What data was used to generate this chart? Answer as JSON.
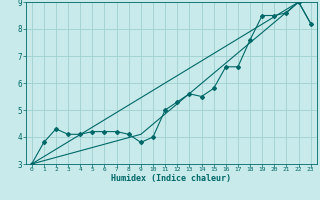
{
  "xlabel": "Humidex (Indice chaleur)",
  "bg_color": "#c8eaea",
  "grid_color": "#a0d0d0",
  "line_color": "#006868",
  "xlim": [
    -0.5,
    23.5
  ],
  "ylim": [
    3,
    9
  ],
  "xticks": [
    0,
    1,
    2,
    3,
    4,
    5,
    6,
    7,
    8,
    9,
    10,
    11,
    12,
    13,
    14,
    15,
    16,
    17,
    18,
    19,
    20,
    21,
    22,
    23
  ],
  "yticks": [
    3,
    4,
    5,
    6,
    7,
    8,
    9
  ],
  "line1_x": [
    0,
    1,
    2,
    3,
    4,
    5,
    6,
    7,
    8,
    9,
    10,
    11,
    12,
    13,
    14,
    15,
    16,
    17,
    18,
    19,
    20,
    21,
    22,
    23
  ],
  "line1_y": [
    3.0,
    3.8,
    4.3,
    4.1,
    4.1,
    4.2,
    4.2,
    4.2,
    4.1,
    3.8,
    4.0,
    5.0,
    5.3,
    5.6,
    5.5,
    5.8,
    6.6,
    6.6,
    7.6,
    8.5,
    8.5,
    8.6,
    9.0,
    8.2
  ],
  "line2_x": [
    0,
    22
  ],
  "line2_y": [
    3.0,
    9.0
  ],
  "line3_x": [
    0,
    9,
    22,
    23
  ],
  "line3_y": [
    3.0,
    4.1,
    9.0,
    8.2
  ]
}
